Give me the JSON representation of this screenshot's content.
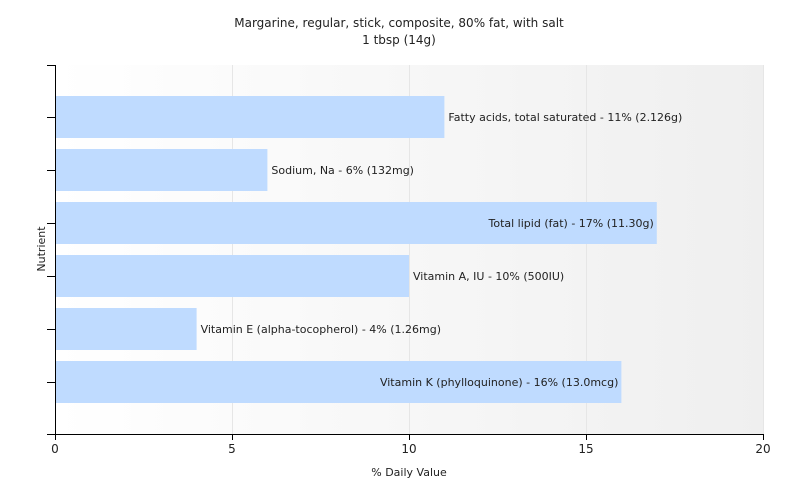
{
  "chart_data": {
    "type": "bar",
    "orientation": "horizontal",
    "title": "Margarine, regular, stick, composite, 80% fat, with salt",
    "subtitle": "1 tbsp (14g)",
    "xlabel": "% Daily Value",
    "ylabel": "Nutrient",
    "xlim": [
      0,
      20
    ],
    "xticks": [
      0,
      5,
      10,
      15,
      20
    ],
    "grid": true,
    "bar_color": "#bfdbff",
    "bars": [
      {
        "category": "Fatty acids, total saturated",
        "value": 11,
        "label": "Fatty acids, total saturated - 11% (2.126g)"
      },
      {
        "category": "Sodium, Na",
        "value": 6,
        "label": "Sodium, Na - 6% (132mg)"
      },
      {
        "category": "Total lipid (fat)",
        "value": 17,
        "label": "Total lipid (fat) - 17% (11.30g)"
      },
      {
        "category": "Vitamin A, IU",
        "value": 10,
        "label": "Vitamin A, IU - 10% (500IU)"
      },
      {
        "category": "Vitamin E (alpha-tocopherol)",
        "value": 4,
        "label": "Vitamin E (alpha-tocopherol) - 4% (1.26mg)"
      },
      {
        "category": "Vitamin K (phylloquinone)",
        "value": 16,
        "label": "Vitamin K (phylloquinone) - 16% (13.0mcg)"
      }
    ]
  }
}
